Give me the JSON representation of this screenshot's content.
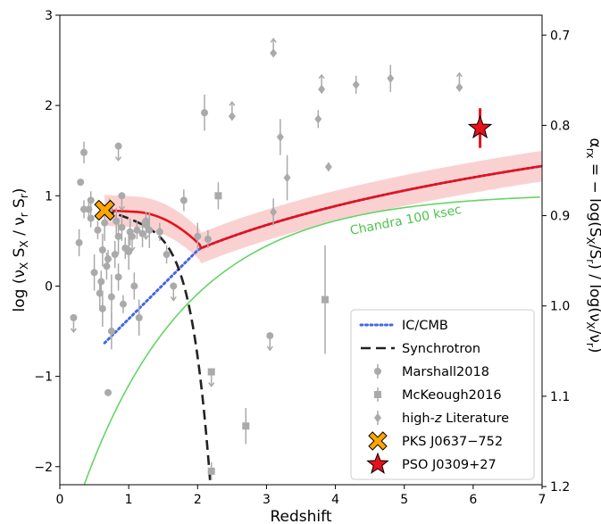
{
  "chart_data": {
    "type": "scatter",
    "xlabel": "Redshift",
    "ylabel": "log (ν",
    "ylabel_sub1": "X",
    "ylabel_mid": " S",
    "ylabel_sub2": "X",
    "ylabel_mid2": "  / ν",
    "ylabel_sub3": "r",
    "ylabel_mid3": " S",
    "ylabel_sub4": "r",
    "ylabel_end": ")",
    "y2label": "α",
    "y2label_sub": "rx",
    "y2label_rest": " = − log(S",
    "y2label_sub2": "X",
    "y2label_rest2": "/S",
    "y2label_sub3": "r",
    "y2label_rest3": ") / log(ν",
    "y2label_sub4": "X",
    "y2label_rest4": "/ν",
    "y2label_sub5": "r",
    "y2label_rest5": ")",
    "xlim": [
      0,
      7
    ],
    "ylim": [
      -2.2,
      3
    ],
    "x_ticks": [
      "0",
      "1",
      "2",
      "3",
      "4",
      "5",
      "6",
      "7"
    ],
    "y_ticks": [
      "−2",
      "−1",
      "0",
      "1",
      "2",
      "3"
    ],
    "y2_ticks": [
      "0.7",
      "0.8",
      "0.9",
      "1.0",
      "1.1",
      "1.2"
    ],
    "y2_tick_values": [
      0.7,
      0.8,
      0.9,
      1.0,
      1.1,
      1.2
    ],
    "alpha_offset": 0.978,
    "alpha_scale": 0.1,
    "annotation": "Chandra 100 ksec",
    "legend_position": "lower-right",
    "legend": [
      {
        "label": "IC/CMB",
        "style": "dotted",
        "color": "#4169e1"
      },
      {
        "label": "Synchrotron",
        "style": "dashed",
        "color": "#222222"
      },
      {
        "label": "Marshall2018",
        "style": "circle",
        "color": "#aaaaaa"
      },
      {
        "label": "McKeough2016",
        "style": "square",
        "color": "#aaaaaa"
      },
      {
        "label": "high-",
        "label_italic": "z",
        "label_end": " Literature",
        "style": "diamond",
        "color": "#aaaaaa"
      },
      {
        "label": "PKS J0637−752",
        "style": "cross",
        "color": "#ffa500"
      },
      {
        "label": "PSO J0309+27",
        "style": "star",
        "color": "#e8101a"
      }
    ],
    "colors": {
      "model": "#e8101a",
      "band": "#f9c5c5",
      "icmb": "#4169e1",
      "sync": "#222222",
      "chandra": "#66d466",
      "points": "#aaaaaa",
      "pks": "#ffa500",
      "pso": "#e8101a"
    },
    "series": [
      {
        "marker": "circle",
        "points": [
          {
            "x": 0.2,
            "y": -0.35,
            "upper": true
          },
          {
            "x": 0.28,
            "y": 0.48,
            "err": 0.15
          },
          {
            "x": 0.3,
            "y": 1.15
          },
          {
            "x": 0.35,
            "y": 1.48,
            "err": 0.12
          },
          {
            "x": 0.42,
            "y": 0.85,
            "err": 0.1
          },
          {
            "x": 0.45,
            "y": 0.75,
            "err": 0.1
          },
          {
            "x": 0.5,
            "y": 0.15,
            "err": 0.2
          },
          {
            "x": 0.55,
            "y": 0.62,
            "err": 0.1
          },
          {
            "x": 0.58,
            "y": -0.08,
            "err": 0.15
          },
          {
            "x": 0.6,
            "y": 0.05,
            "err": 0.12
          },
          {
            "x": 0.62,
            "y": 0.4,
            "err": 0.18
          },
          {
            "x": 0.62,
            "y": -0.25,
            "err": 0.2
          },
          {
            "x": 0.65,
            "y": 0.7,
            "err": 0.2
          },
          {
            "x": 0.68,
            "y": 0.22,
            "err": 0.15
          },
          {
            "x": 0.7,
            "y": 0.3,
            "err": 0.1
          },
          {
            "x": 0.72,
            "y": 0.85,
            "err": 0.12
          },
          {
            "x": 0.75,
            "y": -0.12,
            "err": 0.25
          },
          {
            "x": 0.75,
            "y": -0.5,
            "err": 0.2
          },
          {
            "x": 0.8,
            "y": 0.35,
            "err": 0.15
          },
          {
            "x": 0.82,
            "y": 0.72,
            "err": 0.15
          },
          {
            "x": 0.85,
            "y": 0.1,
            "err": 0.15
          },
          {
            "x": 0.85,
            "y": 0.55,
            "err": 0.2
          },
          {
            "x": 0.9,
            "y": 0.65,
            "err": 0.15
          },
          {
            "x": 0.92,
            "y": -0.2,
            "err": 0.1
          },
          {
            "x": 0.95,
            "y": 0.42,
            "err": 0.12
          },
          {
            "x": 1.0,
            "y": 0.38,
            "err": 0.2
          },
          {
            "x": 1.02,
            "y": 0.6,
            "err": 0.15
          },
          {
            "x": 1.05,
            "y": 0.55,
            "upper": true
          },
          {
            "x": 1.08,
            "y": 0.0,
            "err": 0.15
          },
          {
            "x": 1.12,
            "y": 0.62,
            "err": 0.1
          },
          {
            "x": 1.15,
            "y": -0.35,
            "err": 0.2
          },
          {
            "x": 1.2,
            "y": 0.58,
            "err": 0.15
          },
          {
            "x": 1.25,
            "y": 0.72,
            "err": 0.1
          },
          {
            "x": 1.3,
            "y": 0.62,
            "err": 0.2
          },
          {
            "x": 0.85,
            "y": 1.55,
            "upper": true
          },
          {
            "x": 0.9,
            "y": 1.0,
            "upper": true
          },
          {
            "x": 1.25,
            "y": 0.68,
            "upper": true
          },
          {
            "x": 1.45,
            "y": 0.6,
            "err": 0.1
          },
          {
            "x": 1.55,
            "y": 0.35,
            "err": 0.1
          },
          {
            "x": 1.65,
            "y": 0.0,
            "upper": true
          },
          {
            "x": 1.8,
            "y": 0.95,
            "err": 0.12
          },
          {
            "x": 2.0,
            "y": 0.55,
            "err": 0.15
          },
          {
            "x": 2.1,
            "y": 1.92,
            "err": 0.2
          },
          {
            "x": 2.15,
            "y": 0.52,
            "err": 0.1
          },
          {
            "x": 3.05,
            "y": -0.55,
            "upper": true
          },
          {
            "x": 0.7,
            "y": -1.18,
            "err": 0.0
          },
          {
            "x": 0.35,
            "y": 0.85,
            "err": 0.1
          },
          {
            "x": 0.45,
            "y": 0.95,
            "err": 0.1
          }
        ]
      },
      {
        "marker": "square",
        "points": [
          {
            "x": 2.2,
            "y": -0.95,
            "upper": true
          },
          {
            "x": 2.3,
            "y": 1.0,
            "err": 0.15
          },
          {
            "x": 2.2,
            "y": -2.05,
            "err": 0.1
          },
          {
            "x": 2.7,
            "y": -1.55,
            "err": 0.2
          },
          {
            "x": 3.85,
            "y": -0.15,
            "err": 0.6
          }
        ]
      },
      {
        "marker": "diamond",
        "points": [
          {
            "x": 2.5,
            "y": 1.88,
            "lower": true
          },
          {
            "x": 3.1,
            "y": 2.58,
            "lower": true
          },
          {
            "x": 3.2,
            "y": 1.65,
            "err": 0.2
          },
          {
            "x": 3.75,
            "y": 1.85,
            "err": 0.1
          },
          {
            "x": 3.8,
            "y": 2.18,
            "lower": true
          },
          {
            "x": 3.9,
            "y": 1.32,
            "err": 0.05
          },
          {
            "x": 4.3,
            "y": 2.23,
            "err": 0.1
          },
          {
            "x": 4.8,
            "y": 2.3,
            "err": 0.15
          },
          {
            "x": 5.8,
            "y": 2.2,
            "lower": true
          },
          {
            "x": 3.1,
            "y": 0.82,
            "err": 0.15
          },
          {
            "x": 3.3,
            "y": 1.2,
            "err": 0.25
          }
        ]
      },
      {
        "marker": "cross",
        "points": [
          {
            "x": 0.65,
            "y": 0.84
          }
        ]
      },
      {
        "marker": "star",
        "points": [
          {
            "x": 6.1,
            "y": 1.75,
            "err": 0.22
          }
        ]
      }
    ]
  }
}
